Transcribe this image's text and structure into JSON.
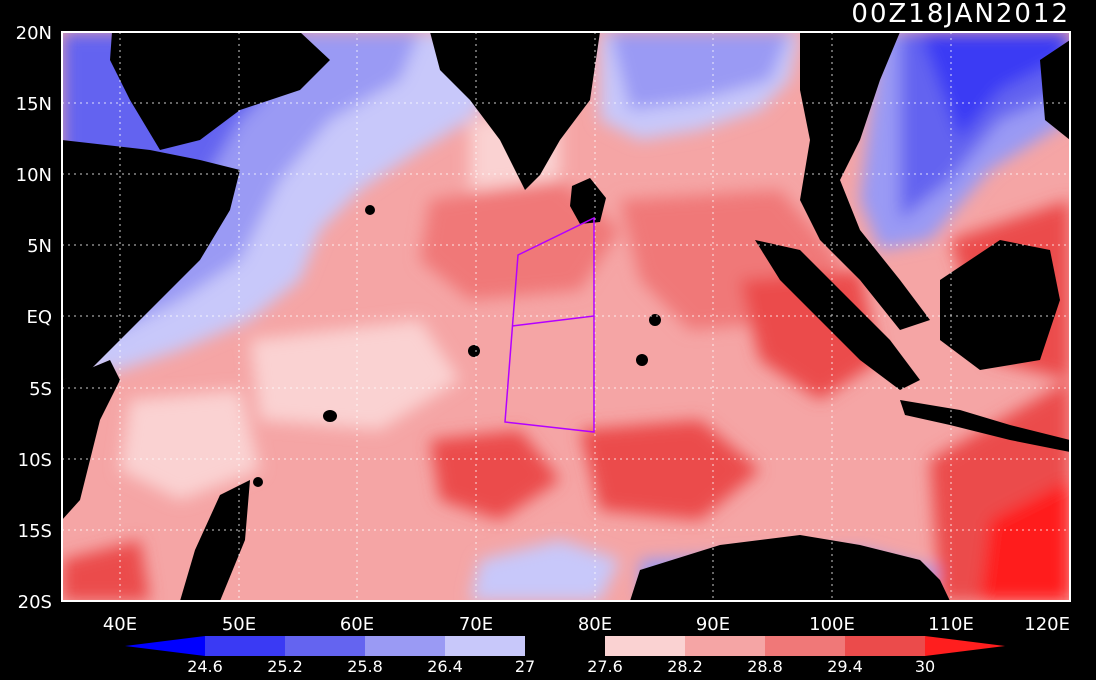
{
  "title": "00Z18JAN2012",
  "map": {
    "lon_range": [
      35,
      120
    ],
    "lat_range": [
      -20,
      20
    ],
    "grid": "dotted"
  },
  "axes": {
    "lon_ticks": [
      "40E",
      "50E",
      "60E",
      "70E",
      "80E",
      "90E",
      "100E",
      "110E",
      "120E"
    ],
    "lat_ticks": [
      "20N",
      "15N",
      "10N",
      "5N",
      "EQ",
      "5S",
      "10S",
      "15S",
      "20S"
    ]
  },
  "colorbar": {
    "labels": [
      "24.6",
      "25.2",
      "25.8",
      "26.4",
      "27",
      "27.6",
      "28.2",
      "28.8",
      "29.4",
      "30"
    ],
    "colors": [
      "#0000ff",
      "#3a3af4",
      "#6464f0",
      "#9a9af4",
      "#c8c8fa",
      "#000000",
      "#fad2d2",
      "#f5a5a5",
      "#f07878",
      "#eb4b4b",
      "#ff1e1e"
    ]
  },
  "colors": {
    "land": "#000000",
    "box_outline": "#b400ff"
  }
}
